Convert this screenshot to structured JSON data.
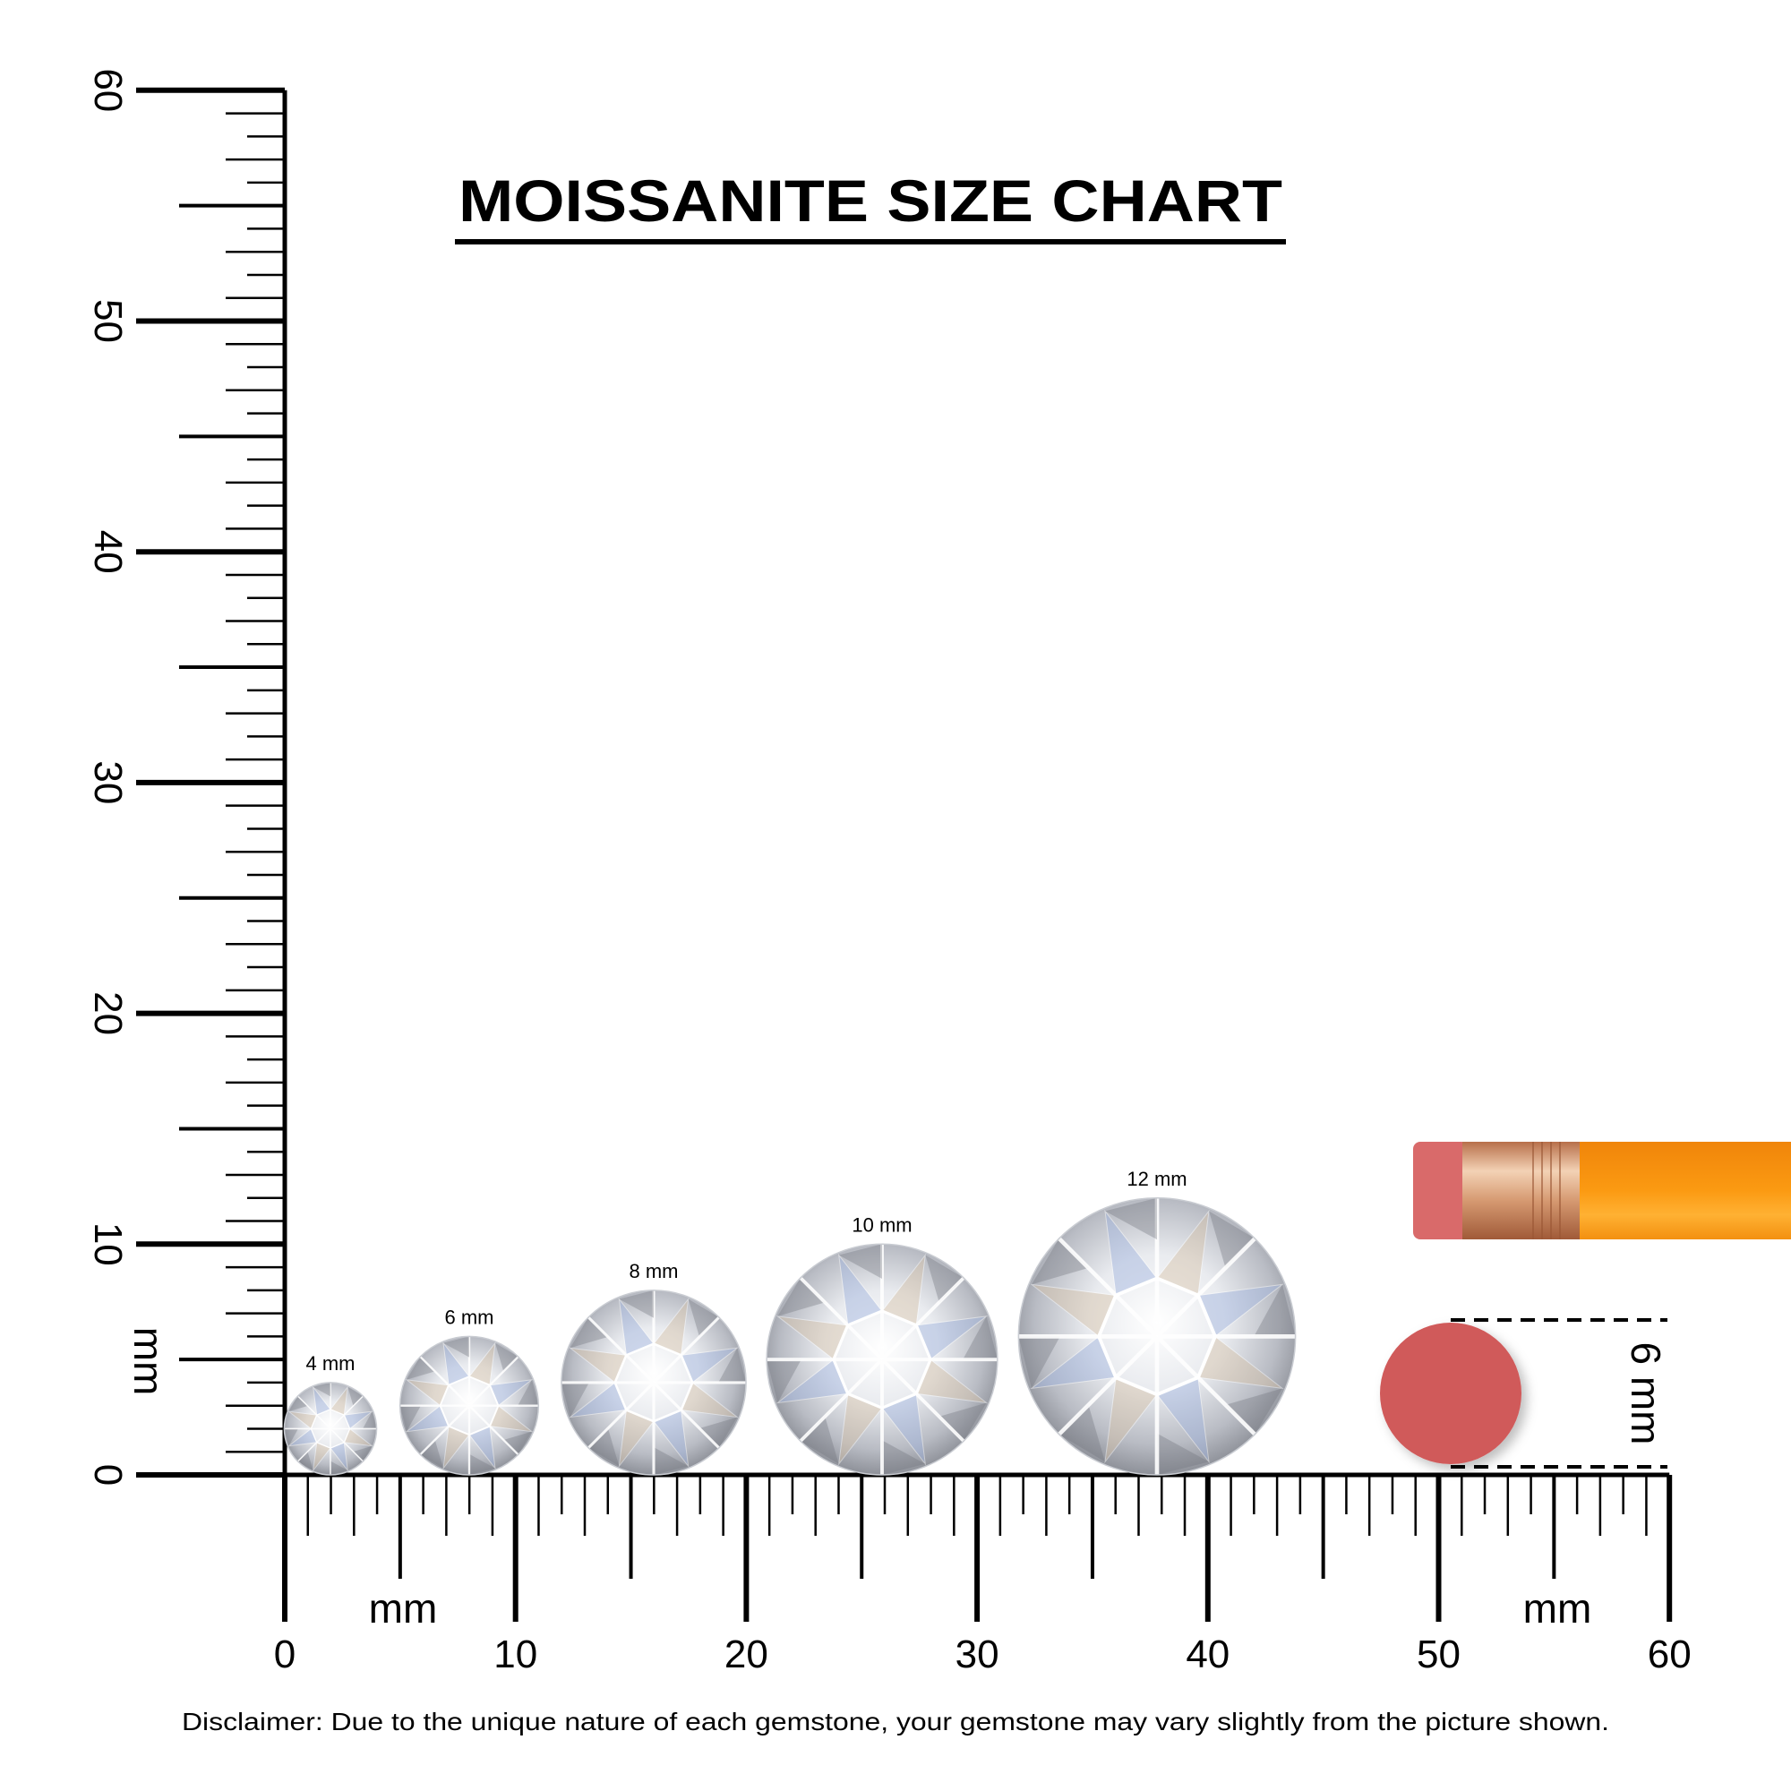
{
  "title": "MOISSANITE SIZE CHART",
  "disclaimer": "Disclaimer: Due to the unique nature of each gemstone, your gemstone may vary slightly from the picture shown.",
  "ruler": {
    "unit_label": "mm",
    "range_mm": [
      0,
      60
    ],
    "tick_labels": [
      "0",
      "10",
      "20",
      "30",
      "40",
      "50",
      "60"
    ]
  },
  "gems": [
    {
      "label": "4 mm",
      "diameter_mm": 4
    },
    {
      "label": "6 mm",
      "diameter_mm": 6
    },
    {
      "label": "8 mm",
      "diameter_mm": 8
    },
    {
      "label": "10 mm",
      "diameter_mm": 10
    },
    {
      "label": "12 mm",
      "diameter_mm": 12
    }
  ],
  "eraser_reference": {
    "label": "6 mm",
    "diameter_mm": 6,
    "color": "#d05a5a"
  },
  "pencil": {
    "eraser_color": "#d96a6a",
    "ferrule_color": "#d9a07a",
    "body_color": "#f79a10"
  }
}
